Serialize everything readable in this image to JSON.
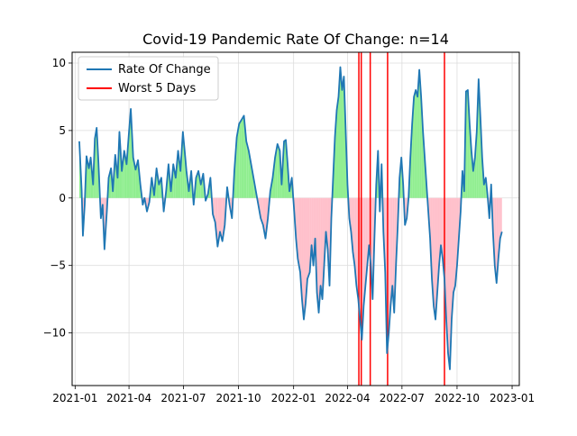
{
  "chart_data": {
    "type": "line",
    "title": "Covid-19 Pandemic Rate Of Change: n=14",
    "xlabel": "",
    "ylabel": "",
    "x_range": [
      "2020-12-27",
      "2023-01-13"
    ],
    "ylim": [
      -13.9,
      10.8
    ],
    "grid": true,
    "legend": "upper left",
    "x_ticks": [
      {
        "date": "2021-01-01",
        "label": "2021-01"
      },
      {
        "date": "2021-04-01",
        "label": "2021-04"
      },
      {
        "date": "2021-07-01",
        "label": "2021-07"
      },
      {
        "date": "2021-10-01",
        "label": "2021-10"
      },
      {
        "date": "2022-01-01",
        "label": "2022-01"
      },
      {
        "date": "2022-04-01",
        "label": "2022-04"
      },
      {
        "date": "2022-07-01",
        "label": "2022-07"
      },
      {
        "date": "2022-10-01",
        "label": "2022-10"
      },
      {
        "date": "2023-01-01",
        "label": "2023-01"
      }
    ],
    "y_ticks": [
      {
        "value": 10,
        "label": "10"
      },
      {
        "value": 5,
        "label": "5"
      },
      {
        "value": 0,
        "label": "0"
      },
      {
        "value": -5,
        "label": "−5"
      },
      {
        "value": -10,
        "label": "−10"
      }
    ],
    "series": [
      {
        "name": "Rate Of Change",
        "color": "#1f77b4",
        "points": [
          [
            "2021-01-08",
            4.2
          ],
          [
            "2021-01-12",
            0.5
          ],
          [
            "2021-01-14",
            -2.8
          ],
          [
            "2021-01-17",
            -0.5
          ],
          [
            "2021-01-20",
            3.1
          ],
          [
            "2021-01-24",
            2.2
          ],
          [
            "2021-01-27",
            3.0
          ],
          [
            "2021-01-31",
            1.0
          ],
          [
            "2021-02-03",
            4.4
          ],
          [
            "2021-02-06",
            5.2
          ],
          [
            "2021-02-09",
            2.6
          ],
          [
            "2021-02-13",
            -1.5
          ],
          [
            "2021-02-16",
            -0.5
          ],
          [
            "2021-02-19",
            -3.8
          ],
          [
            "2021-02-23",
            -1.0
          ],
          [
            "2021-02-26",
            1.5
          ],
          [
            "2021-03-02",
            2.2
          ],
          [
            "2021-03-05",
            0.5
          ],
          [
            "2021-03-09",
            3.2
          ],
          [
            "2021-03-13",
            1.5
          ],
          [
            "2021-03-16",
            4.9
          ],
          [
            "2021-03-20",
            2.0
          ],
          [
            "2021-03-24",
            3.5
          ],
          [
            "2021-03-28",
            2.5
          ],
          [
            "2021-04-01",
            4.9
          ],
          [
            "2021-04-04",
            6.6
          ],
          [
            "2021-04-08",
            3.0
          ],
          [
            "2021-04-12",
            2.1
          ],
          [
            "2021-04-16",
            2.8
          ],
          [
            "2021-04-20",
            1.0
          ],
          [
            "2021-04-24",
            -0.5
          ],
          [
            "2021-04-27",
            0.0
          ],
          [
            "2021-05-01",
            -1.0
          ],
          [
            "2021-05-05",
            -0.3
          ],
          [
            "2021-05-09",
            1.5
          ],
          [
            "2021-05-13",
            0.2
          ],
          [
            "2021-05-17",
            2.2
          ],
          [
            "2021-05-21",
            1.0
          ],
          [
            "2021-05-25",
            1.5
          ],
          [
            "2021-05-29",
            -1.0
          ],
          [
            "2021-06-02",
            0.5
          ],
          [
            "2021-06-06",
            2.5
          ],
          [
            "2021-06-10",
            0.5
          ],
          [
            "2021-06-14",
            2.5
          ],
          [
            "2021-06-18",
            1.5
          ],
          [
            "2021-06-22",
            3.5
          ],
          [
            "2021-06-26",
            2.0
          ],
          [
            "2021-06-30",
            4.9
          ],
          [
            "2021-07-03",
            3.5
          ],
          [
            "2021-07-06",
            2.0
          ],
          [
            "2021-07-10",
            0.5
          ],
          [
            "2021-07-14",
            2.0
          ],
          [
            "2021-07-18",
            -0.5
          ],
          [
            "2021-07-22",
            1.5
          ],
          [
            "2021-07-26",
            2.0
          ],
          [
            "2021-07-30",
            1.0
          ],
          [
            "2021-08-03",
            1.8
          ],
          [
            "2021-08-07",
            -0.2
          ],
          [
            "2021-08-11",
            0.3
          ],
          [
            "2021-08-15",
            1.5
          ],
          [
            "2021-08-19",
            -1.2
          ],
          [
            "2021-08-23",
            -1.8
          ],
          [
            "2021-08-27",
            -3.6
          ],
          [
            "2021-08-31",
            -2.5
          ],
          [
            "2021-09-04",
            -3.2
          ],
          [
            "2021-09-08",
            -2.0
          ],
          [
            "2021-09-12",
            0.8
          ],
          [
            "2021-09-16",
            -0.5
          ],
          [
            "2021-09-20",
            -1.5
          ],
          [
            "2021-09-24",
            2.0
          ],
          [
            "2021-09-28",
            4.5
          ],
          [
            "2021-10-02",
            5.5
          ],
          [
            "2021-10-06",
            5.8
          ],
          [
            "2021-10-10",
            6.1
          ],
          [
            "2021-10-14",
            4.2
          ],
          [
            "2021-10-18",
            3.5
          ],
          [
            "2021-10-22",
            2.5
          ],
          [
            "2021-10-26",
            1.5
          ],
          [
            "2021-10-30",
            0.5
          ],
          [
            "2021-11-03",
            -0.5
          ],
          [
            "2021-11-07",
            -1.5
          ],
          [
            "2021-11-11",
            -2.0
          ],
          [
            "2021-11-15",
            -3.0
          ],
          [
            "2021-11-19",
            -1.5
          ],
          [
            "2021-11-23",
            0.5
          ],
          [
            "2021-11-27",
            1.5
          ],
          [
            "2021-12-01",
            3.0
          ],
          [
            "2021-12-05",
            4.0
          ],
          [
            "2021-12-09",
            3.5
          ],
          [
            "2021-12-12",
            1.0
          ],
          [
            "2021-12-16",
            4.2
          ],
          [
            "2021-12-19",
            4.3
          ],
          [
            "2021-12-22",
            2.5
          ],
          [
            "2021-12-25",
            0.5
          ],
          [
            "2021-12-29",
            1.5
          ],
          [
            "2022-01-02",
            -1.0
          ],
          [
            "2022-01-05",
            -3.0
          ],
          [
            "2022-01-08",
            -4.5
          ],
          [
            "2022-01-12",
            -5.5
          ],
          [
            "2022-01-15",
            -7.5
          ],
          [
            "2022-01-18",
            -9.0
          ],
          [
            "2022-01-21",
            -7.8
          ],
          [
            "2022-01-24",
            -6.0
          ],
          [
            "2022-01-28",
            -5.5
          ],
          [
            "2022-01-31",
            -3.5
          ],
          [
            "2022-02-03",
            -5.0
          ],
          [
            "2022-02-06",
            -3.0
          ],
          [
            "2022-02-09",
            -7.0
          ],
          [
            "2022-02-12",
            -8.5
          ],
          [
            "2022-02-15",
            -6.5
          ],
          [
            "2022-02-18",
            -7.5
          ],
          [
            "2022-02-21",
            -5.0
          ],
          [
            "2022-02-24",
            -2.5
          ],
          [
            "2022-02-27",
            -3.8
          ],
          [
            "2022-03-02",
            -6.5
          ],
          [
            "2022-03-05",
            -1.5
          ],
          [
            "2022-03-08",
            1.5
          ],
          [
            "2022-03-11",
            4.5
          ],
          [
            "2022-03-14",
            6.5
          ],
          [
            "2022-03-17",
            7.5
          ],
          [
            "2022-03-20",
            9.7
          ],
          [
            "2022-03-23",
            8.0
          ],
          [
            "2022-03-26",
            9.0
          ],
          [
            "2022-03-29",
            5.0
          ],
          [
            "2022-04-01",
            1.0
          ],
          [
            "2022-04-04",
            -1.5
          ],
          [
            "2022-04-07",
            -2.5
          ],
          [
            "2022-04-10",
            -4.0
          ],
          [
            "2022-04-13",
            -5.0
          ],
          [
            "2022-04-16",
            -6.5
          ],
          [
            "2022-04-19",
            -7.5
          ],
          [
            "2022-04-22",
            -9.0
          ],
          [
            "2022-04-25",
            -10.5
          ],
          [
            "2022-04-28",
            -8.0
          ],
          [
            "2022-05-01",
            -6.5
          ],
          [
            "2022-05-04",
            -5.0
          ],
          [
            "2022-05-07",
            -3.5
          ],
          [
            "2022-05-10",
            -5.0
          ],
          [
            "2022-05-13",
            -7.5
          ],
          [
            "2022-05-16",
            -3.0
          ],
          [
            "2022-05-19",
            1.0
          ],
          [
            "2022-05-22",
            3.5
          ],
          [
            "2022-05-25",
            -1.0
          ],
          [
            "2022-05-28",
            2.5
          ],
          [
            "2022-05-31",
            -2.5
          ],
          [
            "2022-06-03",
            -5.5
          ],
          [
            "2022-06-06",
            -11.5
          ],
          [
            "2022-06-09",
            -10.0
          ],
          [
            "2022-06-12",
            -8.0
          ],
          [
            "2022-06-15",
            -6.5
          ],
          [
            "2022-06-18",
            -8.5
          ],
          [
            "2022-06-21",
            -5.0
          ],
          [
            "2022-06-24",
            -2.0
          ],
          [
            "2022-06-27",
            1.5
          ],
          [
            "2022-06-30",
            3.0
          ],
          [
            "2022-07-03",
            1.0
          ],
          [
            "2022-07-06",
            -2.0
          ],
          [
            "2022-07-09",
            -1.5
          ],
          [
            "2022-07-12",
            0.0
          ],
          [
            "2022-07-15",
            3.0
          ],
          [
            "2022-07-18",
            5.5
          ],
          [
            "2022-07-21",
            7.5
          ],
          [
            "2022-07-24",
            8.0
          ],
          [
            "2022-07-27",
            7.5
          ],
          [
            "2022-07-30",
            9.5
          ],
          [
            "2022-08-02",
            7.5
          ],
          [
            "2022-08-05",
            5.0
          ],
          [
            "2022-08-08",
            3.0
          ],
          [
            "2022-08-11",
            1.0
          ],
          [
            "2022-08-14",
            -1.0
          ],
          [
            "2022-08-17",
            -3.0
          ],
          [
            "2022-08-20",
            -6.0
          ],
          [
            "2022-08-23",
            -8.0
          ],
          [
            "2022-08-26",
            -9.0
          ],
          [
            "2022-08-29",
            -7.0
          ],
          [
            "2022-09-01",
            -5.0
          ],
          [
            "2022-09-04",
            -3.5
          ],
          [
            "2022-09-07",
            -4.5
          ],
          [
            "2022-09-10",
            -6.0
          ],
          [
            "2022-09-13",
            -9.0
          ],
          [
            "2022-09-16",
            -11.5
          ],
          [
            "2022-09-19",
            -12.7
          ],
          [
            "2022-09-22",
            -9.0
          ],
          [
            "2022-09-25",
            -7.0
          ],
          [
            "2022-09-28",
            -6.5
          ],
          [
            "2022-10-01",
            -5.0
          ],
          [
            "2022-10-04",
            -3.0
          ],
          [
            "2022-10-07",
            -1.0
          ],
          [
            "2022-10-10",
            2.0
          ],
          [
            "2022-10-13",
            0.5
          ],
          [
            "2022-10-16",
            7.9
          ],
          [
            "2022-10-19",
            8.0
          ],
          [
            "2022-10-22",
            5.5
          ],
          [
            "2022-10-25",
            3.5
          ],
          [
            "2022-10-28",
            2.0
          ],
          [
            "2022-10-31",
            3.0
          ],
          [
            "2022-11-03",
            5.0
          ],
          [
            "2022-11-06",
            8.8
          ],
          [
            "2022-11-09",
            6.0
          ],
          [
            "2022-11-12",
            3.0
          ],
          [
            "2022-11-15",
            1.0
          ],
          [
            "2022-11-18",
            1.5
          ],
          [
            "2022-11-21",
            0.2
          ],
          [
            "2022-11-24",
            -1.5
          ],
          [
            "2022-11-27",
            1.0
          ],
          [
            "2022-11-30",
            -2.5
          ],
          [
            "2022-12-03",
            -5.0
          ],
          [
            "2022-12-06",
            -6.3
          ],
          [
            "2022-12-09",
            -4.5
          ],
          [
            "2022-12-12",
            -3.0
          ],
          [
            "2022-12-15",
            -2.5
          ]
        ]
      }
    ],
    "worst_days": {
      "name": "Worst 5 Days",
      "color": "#ff0000",
      "dates": [
        "2022-04-20",
        "2022-04-24",
        "2022-05-09",
        "2022-06-07",
        "2022-09-10"
      ]
    },
    "fill_colors": {
      "positive": "#90ee90",
      "negative": "#ffc0cb"
    },
    "grid_color": "#dddddd"
  }
}
